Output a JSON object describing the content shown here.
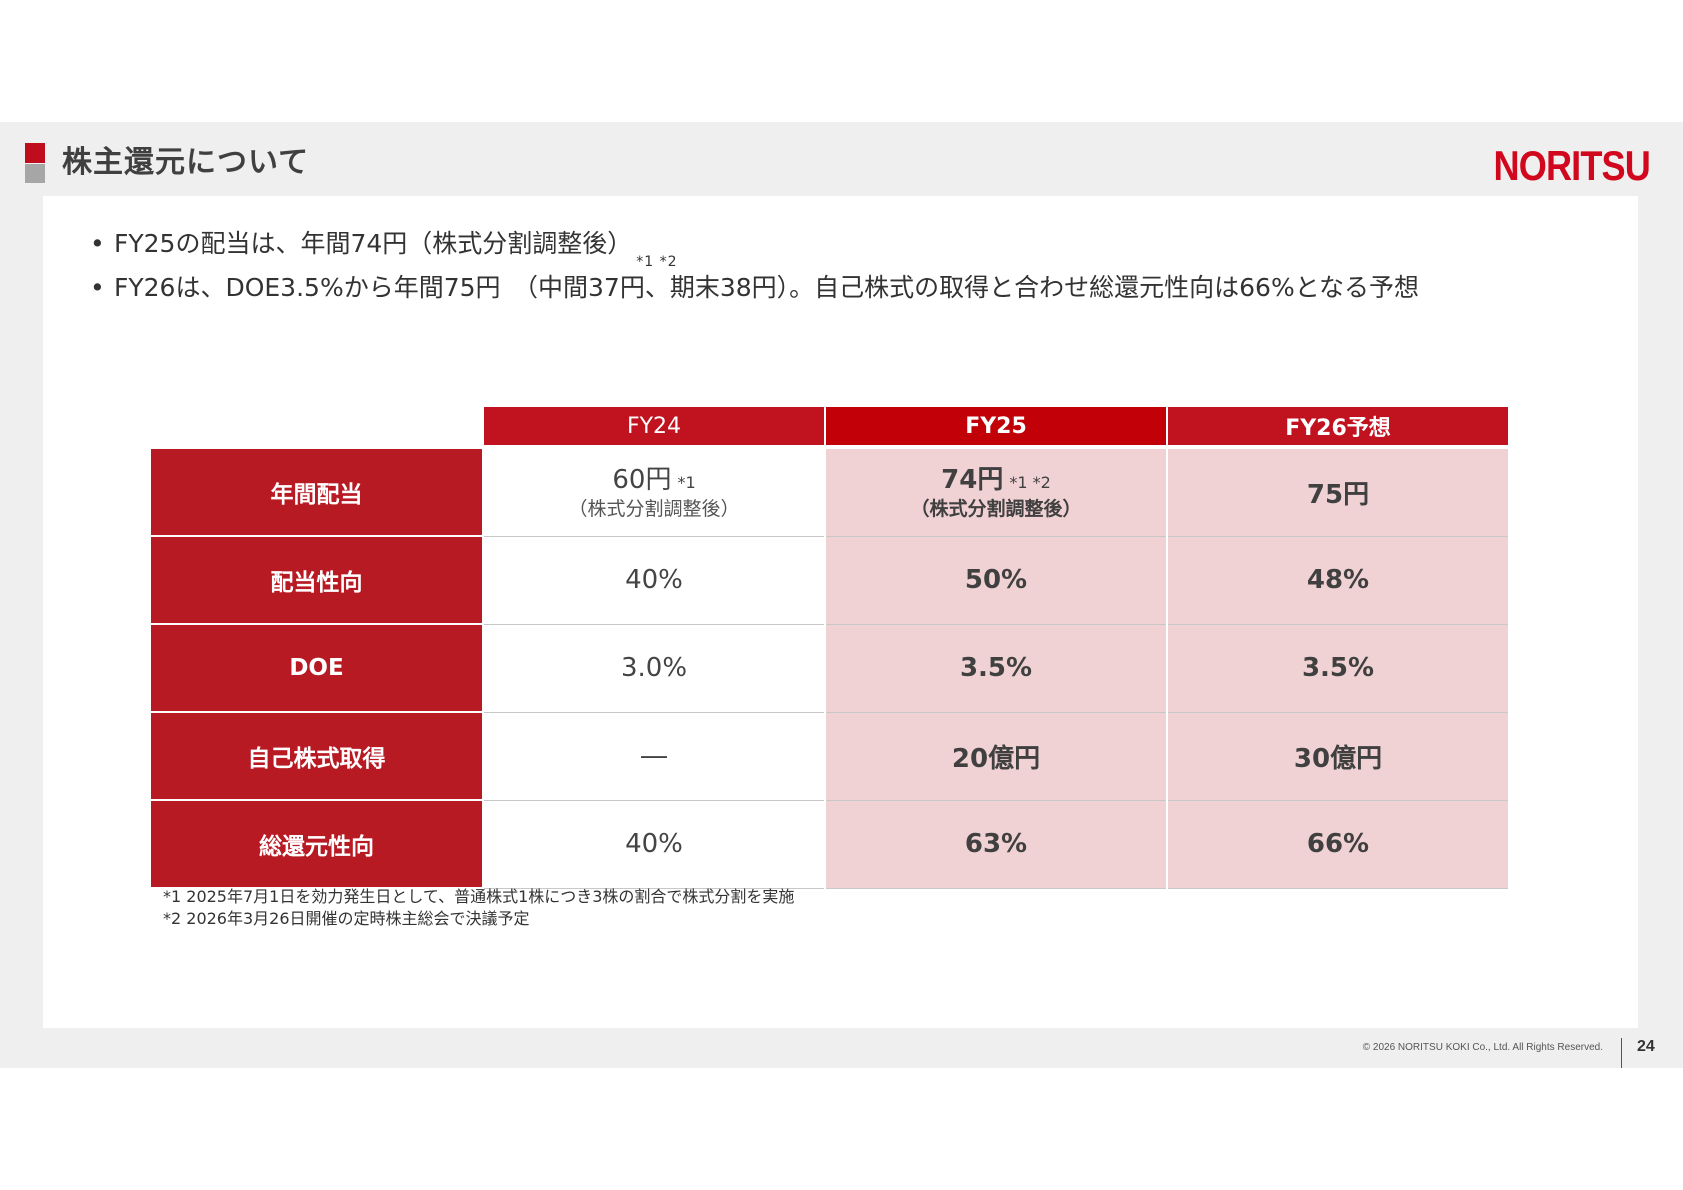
{
  "header": {
    "title": "株主還元について",
    "logo_text": "NORITSU",
    "brand_color": "#d1071d"
  },
  "bullets": [
    {
      "text": "FY25の配当は、年間74円（株式分割調整後）",
      "note": "*1 *2"
    },
    {
      "text": "FY26は、DOE3.5%から年間75円　（中間37円、期末38円）。自己株式の取得と合わせ総還元性向は66%となる予想",
      "note": ""
    }
  ],
  "table": {
    "columns": [
      "FY24",
      "FY25",
      "FY26予想"
    ],
    "rows": [
      {
        "label": "年間配当",
        "fy24": {
          "value": "60円",
          "note": "*1",
          "sub": "（株式分割調整後）"
        },
        "fy25": {
          "value": "74円",
          "note": "*1 *2",
          "sub": "（株式分割調整後）"
        },
        "fy26": {
          "value": "75円"
        }
      },
      {
        "label": "配当性向",
        "fy24": {
          "value": "40%"
        },
        "fy25": {
          "value": "50%"
        },
        "fy26": {
          "value": "48%"
        }
      },
      {
        "label": "DOE",
        "fy24": {
          "value": "3.0%"
        },
        "fy25": {
          "value": "3.5%"
        },
        "fy26": {
          "value": "3.5%"
        }
      },
      {
        "label": "自己株式取得",
        "fy24": {
          "value": "―"
        },
        "fy25": {
          "value": "20億円"
        },
        "fy26": {
          "value": "30億円"
        }
      },
      {
        "label": "総還元性向",
        "fy24": {
          "value": "40%"
        },
        "fy25": {
          "value": "63%"
        },
        "fy26": {
          "value": "66%"
        }
      }
    ]
  },
  "footnotes": [
    "*1 2025年7月1日を効力発生日として、普通株式1株につき3株の割合で株式分割を実施",
    "*2 2026年3月26日開催の定時株主総会で決議予定"
  ],
  "footer": {
    "copyright": "© 2026 NORITSU KOKI Co., Ltd. All Rights Reserved.",
    "page_number": "24"
  }
}
